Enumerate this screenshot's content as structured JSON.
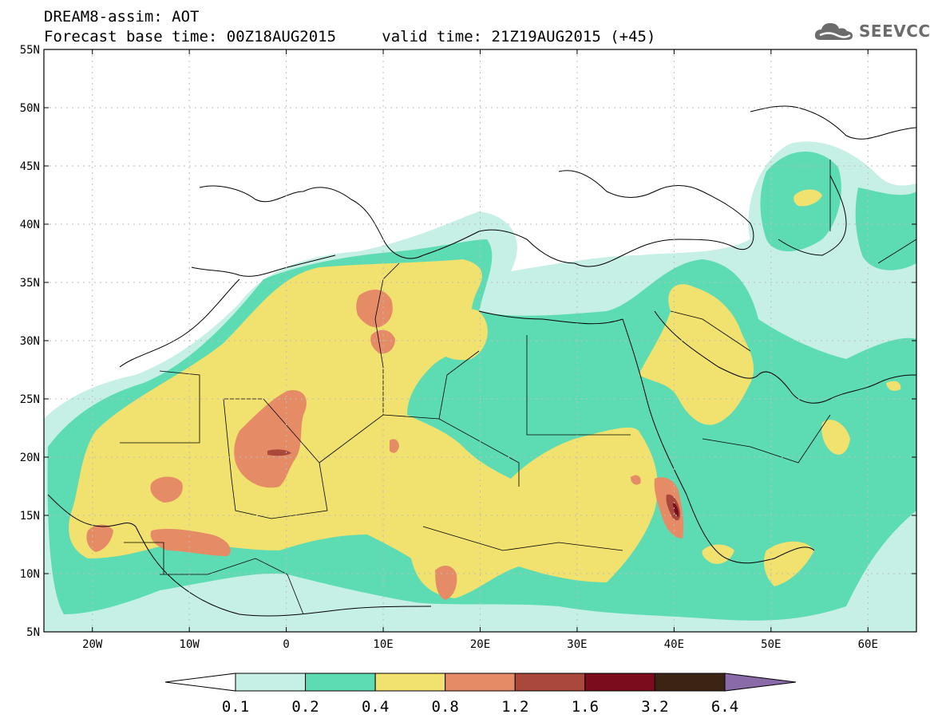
{
  "header": {
    "line1": "DREAM8-assim: AOT",
    "base_time": "Forecast base time: 00Z18AUG2015",
    "valid_time": "valid time: 21Z19AUG2015 (+45)"
  },
  "logo": {
    "text": "SEEVCCC",
    "icon": "cloud-icon"
  },
  "map": {
    "lon_range": [
      -25,
      65
    ],
    "lat_range": [
      5,
      55
    ],
    "lat_ticks": [
      {
        "value": 55,
        "label": "55N"
      },
      {
        "value": 50,
        "label": "50N"
      },
      {
        "value": 45,
        "label": "45N"
      },
      {
        "value": 40,
        "label": "40N"
      },
      {
        "value": 35,
        "label": "35N"
      },
      {
        "value": 30,
        "label": "30N"
      },
      {
        "value": 25,
        "label": "25N"
      },
      {
        "value": 20,
        "label": "20N"
      },
      {
        "value": 15,
        "label": "15N"
      },
      {
        "value": 10,
        "label": "10N"
      },
      {
        "value": 5,
        "label": "5N"
      }
    ],
    "lon_ticks": [
      {
        "value": -20,
        "label": "20W"
      },
      {
        "value": -10,
        "label": "10W"
      },
      {
        "value": 0,
        "label": "0"
      },
      {
        "value": 10,
        "label": "10E"
      },
      {
        "value": 20,
        "label": "20E"
      },
      {
        "value": 30,
        "label": "30E"
      },
      {
        "value": 40,
        "label": "40E"
      },
      {
        "value": 50,
        "label": "50E"
      },
      {
        "value": 60,
        "label": "60E"
      }
    ],
    "grid": "dotted"
  },
  "legend": {
    "labels": [
      "0.1",
      "0.2",
      "0.4",
      "0.8",
      "1.2",
      "1.6",
      "3.2",
      "6.4"
    ],
    "colors": [
      "#ffffff",
      "#c6efe6",
      "#5ddcb4",
      "#f1e16e",
      "#e58c66",
      "#a9483b",
      "#7a0c1e",
      "#3b2413",
      "#8a6aa8"
    ]
  }
}
